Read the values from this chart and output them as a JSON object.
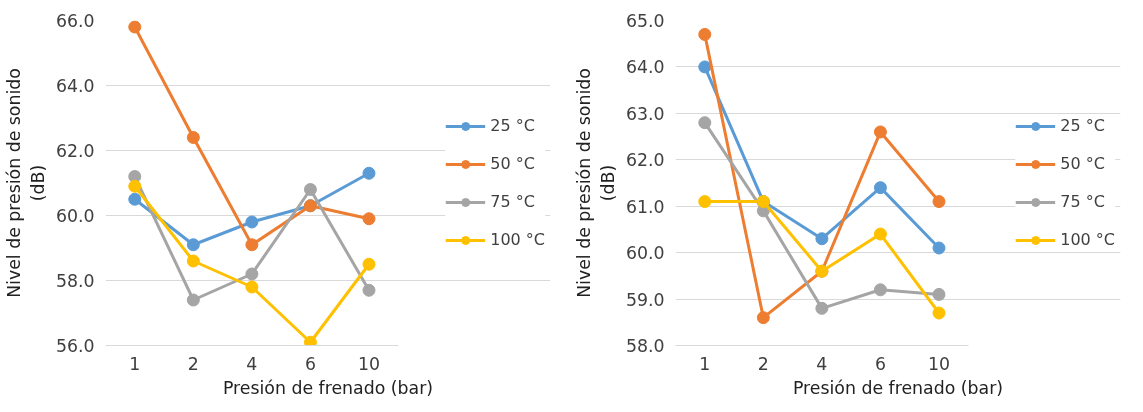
{
  "chart_data": [
    {
      "type": "line",
      "categories": [
        "1",
        "2",
        "4",
        "6",
        "10"
      ],
      "xlabel": "Presión de frenado (bar)",
      "ylabel": "Nivel de presión de sonido (dB)",
      "ylim": [
        56,
        66
      ],
      "yticks": [
        {
          "value": 56,
          "label": "56.0"
        },
        {
          "value": 58,
          "label": "58.0"
        },
        {
          "value": 60,
          "label": "60.0"
        },
        {
          "value": 62,
          "label": "62.0"
        },
        {
          "value": 64,
          "label": "64.0"
        },
        {
          "value": 66,
          "label": "66.0"
        }
      ],
      "grid": "y",
      "legend": "right",
      "marker": "circle",
      "line_style": "solid",
      "series": [
        {
          "name": "25 °C",
          "color": "#5b9bd5",
          "values": [
            60.5,
            59.1,
            59.8,
            60.3,
            61.3
          ]
        },
        {
          "name": "50 °C",
          "color": "#ed7d31",
          "values": [
            65.8,
            62.4,
            59.1,
            60.3,
            59.9
          ]
        },
        {
          "name": "75 °C",
          "color": "#a5a5a5",
          "values": [
            61.2,
            57.4,
            58.2,
            60.8,
            57.7
          ]
        },
        {
          "name": "100 °C",
          "color": "#ffc000",
          "values": [
            60.9,
            58.6,
            57.8,
            56.1,
            58.5
          ]
        }
      ]
    },
    {
      "type": "line",
      "categories": [
        "1",
        "2",
        "4",
        "6",
        "10"
      ],
      "xlabel": "Presión de frenado (bar)",
      "ylabel": "Nivel de presión de sonido (dB)",
      "ylim": [
        58,
        65
      ],
      "yticks": [
        {
          "value": 58,
          "label": "58.0"
        },
        {
          "value": 59,
          "label": "59.0"
        },
        {
          "value": 60,
          "label": "60.0"
        },
        {
          "value": 61,
          "label": "61.0"
        },
        {
          "value": 62,
          "label": "62.0"
        },
        {
          "value": 63,
          "label": "63.0"
        },
        {
          "value": 64,
          "label": "64.0"
        },
        {
          "value": 65,
          "label": "65.0"
        }
      ],
      "grid": "y",
      "legend": "right",
      "marker": "circle",
      "line_style": "solid",
      "series": [
        {
          "name": "25 °C",
          "color": "#5b9bd5",
          "values": [
            64.0,
            61.1,
            60.3,
            61.4,
            60.1
          ]
        },
        {
          "name": "50 °C",
          "color": "#ed7d31",
          "values": [
            64.7,
            58.6,
            59.6,
            62.6,
            61.1
          ]
        },
        {
          "name": "75 °C",
          "color": "#a5a5a5",
          "values": [
            62.8,
            60.9,
            58.8,
            59.2,
            59.1
          ]
        },
        {
          "name": "100 °C",
          "color": "#ffc000",
          "values": [
            61.1,
            61.1,
            59.6,
            60.4,
            58.7
          ]
        }
      ]
    }
  ]
}
